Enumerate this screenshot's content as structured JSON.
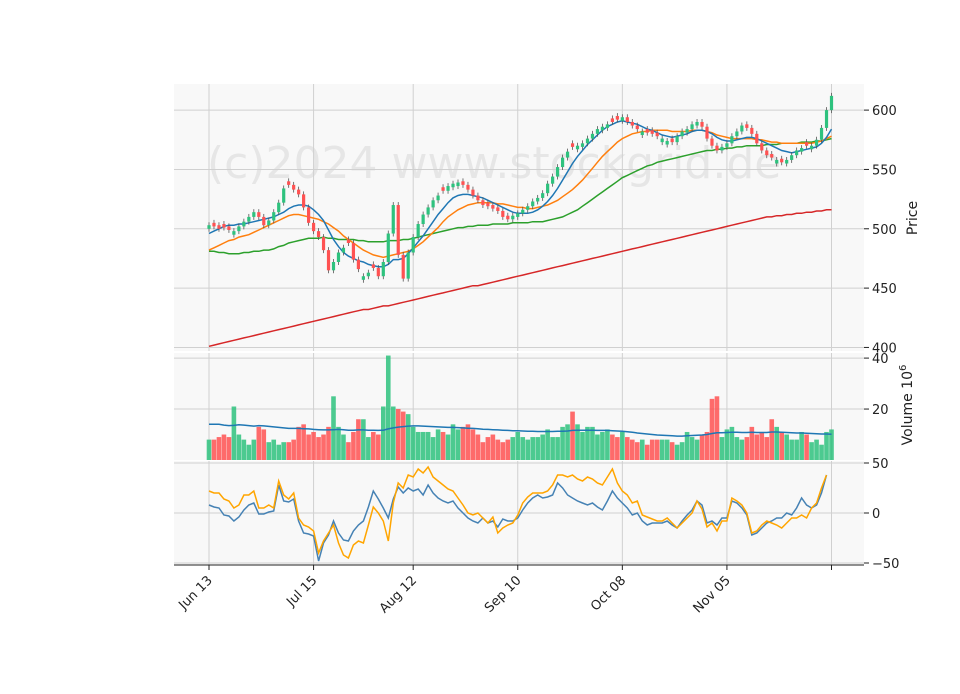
{
  "chart_data": {
    "type": "candlestick",
    "watermark": "(c)2024 www.stockgrid.de",
    "colors": {
      "up": "#2ec27e",
      "down": "#ff5252",
      "ma_fast": "#1f77b4",
      "ma_mid": "#ff7f0e",
      "ma_slow": "#2ca02c",
      "ma_long": "#d62728",
      "vol_ma": "#1f77b4",
      "osc_a": "#4682b4",
      "osc_b": "#ffa500",
      "panel_bg": "#f8f8f8",
      "grid": "#d0d0d0"
    },
    "x_ticks": [
      {
        "label": "Jun 13",
        "index": 0
      },
      {
        "label": "Jul 15",
        "index": 21
      },
      {
        "label": "Aug 12",
        "index": 41
      },
      {
        "label": "Sep 10",
        "index": 62
      },
      {
        "label": "Oct 08",
        "index": 83
      },
      {
        "label": "Nov 05",
        "index": 104
      },
      {
        "label": "",
        "index": 125
      }
    ],
    "price_panel": {
      "ylabel": "Price",
      "ylim": [
        397,
        622
      ],
      "yticks": [
        400,
        450,
        500,
        550,
        600
      ],
      "close": [
        503,
        502,
        500,
        501,
        499,
        498,
        502,
        506,
        510,
        514,
        510,
        503,
        507,
        514,
        522,
        534,
        537,
        533,
        529,
        518,
        505,
        498,
        493,
        482,
        465,
        472,
        480,
        484,
        488,
        474,
        466,
        460,
        463,
        467,
        460,
        472,
        496,
        520,
        478,
        458,
        480,
        493,
        504,
        512,
        518,
        524,
        528,
        532,
        536,
        538,
        539,
        537,
        533,
        528,
        524,
        520,
        519,
        517,
        515,
        510,
        508,
        511,
        513,
        516,
        519,
        523,
        526,
        530,
        538,
        544,
        552,
        560,
        565,
        569,
        570,
        572,
        576,
        580,
        584,
        586,
        588,
        590,
        592,
        594,
        590,
        587,
        584,
        582,
        581,
        580,
        578,
        576,
        574,
        573,
        578,
        582,
        584,
        588,
        590,
        586,
        576,
        570,
        566,
        569,
        572,
        578,
        582,
        587,
        585,
        580,
        572,
        566,
        562,
        560,
        558,
        556,
        558,
        562,
        566,
        568,
        570,
        570,
        575,
        585,
        600,
        612
      ],
      "candle_color": [
        1,
        0,
        0,
        0,
        0,
        1,
        1,
        1,
        1,
        1,
        0,
        0,
        1,
        1,
        1,
        1,
        0,
        0,
        0,
        0,
        0,
        0,
        0,
        0,
        0,
        1,
        1,
        1,
        0,
        0,
        0,
        1,
        1,
        0,
        0,
        1,
        1,
        1,
        0,
        0,
        1,
        1,
        1,
        1,
        1,
        1,
        1,
        0,
        1,
        1,
        1,
        0,
        0,
        0,
        0,
        0,
        0,
        0,
        0,
        0,
        0,
        1,
        1,
        1,
        1,
        1,
        1,
        1,
        1,
        1,
        1,
        1,
        1,
        0,
        1,
        1,
        1,
        1,
        1,
        1,
        1,
        0,
        0,
        1,
        0,
        0,
        0,
        1,
        0,
        0,
        0,
        1,
        1,
        0,
        1,
        1,
        1,
        1,
        1,
        0,
        0,
        0,
        0,
        1,
        1,
        1,
        1,
        1,
        0,
        0,
        0,
        0,
        0,
        0,
        1,
        0,
        1,
        1,
        1,
        1,
        0,
        1,
        1,
        1,
        1,
        1
      ],
      "ma_fast": [
        496,
        498,
        500,
        502,
        503,
        503,
        504,
        504,
        505,
        506,
        507,
        508,
        509,
        510,
        512,
        514,
        517,
        519,
        520,
        520,
        519,
        516,
        512,
        507,
        499,
        491,
        485,
        480,
        477,
        475,
        473,
        472,
        470,
        469,
        468,
        468,
        470,
        474,
        474,
        475,
        479,
        484,
        489,
        494,
        500,
        506,
        512,
        517,
        522,
        526,
        528,
        529,
        529,
        528,
        527,
        526,
        524,
        522,
        520,
        518,
        516,
        514,
        513,
        513,
        513,
        514,
        516,
        519,
        523,
        528,
        534,
        541,
        548,
        555,
        561,
        566,
        571,
        575,
        579,
        583,
        586,
        588,
        590,
        591,
        590,
        589,
        588,
        586,
        584,
        583,
        581,
        579,
        578,
        577,
        578,
        579,
        580,
        582,
        583,
        583,
        582,
        580,
        577,
        575,
        574,
        574,
        575,
        576,
        577,
        577,
        576,
        574,
        572,
        570,
        568,
        566,
        565,
        564,
        565,
        566,
        567,
        568,
        569,
        572,
        577,
        584
      ],
      "ma_mid": [
        482,
        484,
        486,
        488,
        490,
        491,
        493,
        494,
        495,
        497,
        499,
        501,
        503,
        505,
        507,
        509,
        511,
        512,
        512,
        511,
        510,
        509,
        508,
        506,
        504,
        501,
        498,
        494,
        491,
        488,
        485,
        482,
        480,
        478,
        477,
        476,
        477,
        478,
        479,
        480,
        481,
        483,
        486,
        489,
        493,
        497,
        501,
        506,
        510,
        513,
        516,
        518,
        520,
        521,
        522,
        522,
        522,
        522,
        521,
        521,
        520,
        519,
        518,
        518,
        517,
        517,
        518,
        519,
        520,
        522,
        524,
        527,
        530,
        533,
        537,
        541,
        546,
        551,
        556,
        561,
        565,
        569,
        573,
        576,
        578,
        580,
        581,
        582,
        582,
        583,
        583,
        583,
        583,
        582,
        582,
        582,
        582,
        583,
        583,
        583,
        582,
        581,
        579,
        578,
        577,
        576,
        576,
        576,
        576,
        576,
        575,
        575,
        574,
        573,
        573,
        572,
        572,
        572,
        572,
        572,
        572,
        572,
        573,
        574,
        576,
        578
      ],
      "ma_slow": [
        481,
        481,
        480,
        480,
        479,
        479,
        479,
        480,
        480,
        481,
        481,
        482,
        482,
        483,
        485,
        486,
        488,
        489,
        490,
        491,
        492,
        492,
        492,
        493,
        492,
        492,
        491,
        491,
        491,
        491,
        490,
        490,
        489,
        489,
        489,
        489,
        490,
        490,
        490,
        491,
        491,
        492,
        493,
        494,
        495,
        496,
        497,
        498,
        499,
        500,
        501,
        501,
        502,
        502,
        503,
        503,
        503,
        504,
        504,
        504,
        504,
        505,
        505,
        505,
        505,
        506,
        506,
        506,
        507,
        508,
        509,
        510,
        512,
        514,
        516,
        519,
        522,
        525,
        528,
        531,
        534,
        537,
        540,
        543,
        545,
        547,
        549,
        551,
        553,
        554,
        556,
        557,
        558,
        559,
        560,
        561,
        562,
        563,
        564,
        565,
        566,
        566,
        567,
        567,
        568,
        568,
        569,
        569,
        570,
        570,
        570,
        570,
        571,
        571,
        571,
        572,
        572,
        572,
        572,
        573,
        573,
        573,
        574,
        574,
        575,
        576
      ],
      "ma_long": [
        401,
        402,
        403,
        404,
        405,
        406,
        407,
        408,
        409,
        410,
        411,
        412,
        413,
        414,
        415,
        416,
        417,
        418,
        419,
        420,
        421,
        422,
        423,
        424,
        425,
        426,
        427,
        428,
        429,
        430,
        431,
        432,
        432,
        433,
        434,
        435,
        435,
        436,
        437,
        438,
        439,
        440,
        441,
        442,
        443,
        444,
        445,
        446,
        447,
        448,
        449,
        450,
        451,
        452,
        452,
        453,
        454,
        455,
        456,
        457,
        458,
        459,
        460,
        461,
        462,
        463,
        464,
        465,
        466,
        467,
        468,
        469,
        470,
        471,
        472,
        473,
        474,
        475,
        476,
        477,
        478,
        479,
        480,
        481,
        482,
        483,
        484,
        485,
        486,
        487,
        488,
        489,
        490,
        491,
        492,
        493,
        494,
        495,
        496,
        497,
        498,
        499,
        500,
        501,
        502,
        503,
        504,
        505,
        506,
        507,
        508,
        509,
        510,
        510,
        511,
        511,
        512,
        512,
        513,
        513,
        514,
        514,
        515,
        515,
        516,
        516
      ]
    },
    "volume_panel": {
      "ylabel": "Volume 10",
      "ylabel_exp": "6",
      "ylim": [
        0,
        42
      ],
      "yticks": [
        20,
        40
      ],
      "volume": [
        8,
        8,
        9,
        10,
        9,
        21,
        10,
        8,
        6,
        8,
        13,
        12,
        7,
        8,
        6,
        7,
        7,
        8,
        13,
        14,
        10,
        11,
        9,
        10,
        13,
        25,
        13,
        10,
        7,
        11,
        16,
        16,
        9,
        11,
        10,
        21,
        41,
        21,
        20,
        19,
        18,
        13,
        11,
        11,
        11,
        9,
        12,
        11,
        10,
        14,
        12,
        13,
        14,
        12,
        10,
        7,
        9,
        10,
        8,
        7,
        8,
        9,
        11,
        9,
        8,
        9,
        9,
        10,
        12,
        9,
        9,
        13,
        14,
        19,
        14,
        11,
        13,
        13,
        10,
        11,
        12,
        10,
        9,
        11,
        9,
        8,
        7,
        8,
        6,
        8,
        8,
        8,
        8,
        7,
        6,
        7,
        11,
        9,
        8,
        10,
        11,
        24,
        25,
        9,
        12,
        13,
        9,
        8,
        9,
        13,
        10,
        11,
        9,
        16,
        13,
        11,
        10,
        8,
        8,
        11,
        10,
        7,
        8,
        6,
        11,
        12
      ],
      "vol_ma": [
        14,
        14,
        14,
        13.7,
        13.5,
        13.6,
        13.8,
        13.7,
        13.5,
        13.3,
        13.5,
        13.4,
        13.2,
        13,
        12.8,
        12.6,
        12.4,
        12.4,
        12.4,
        12.3,
        12.2,
        12,
        11.9,
        11.8,
        11.8,
        11.9,
        12,
        11.9,
        11.7,
        11.7,
        11.8,
        11.8,
        11.7,
        11.7,
        11.6,
        11.7,
        12.2,
        12.6,
        12.9,
        13.1,
        13.3,
        13.4,
        13.4,
        13.3,
        13.2,
        13.1,
        13,
        12.9,
        12.8,
        12.8,
        12.7,
        12.6,
        12.5,
        12.4,
        12.3,
        12.1,
        12,
        11.9,
        11.8,
        11.7,
        11.6,
        11.5,
        11.5,
        11.4,
        11.3,
        11.3,
        11.2,
        11.2,
        11.2,
        11.2,
        11.3,
        11.3,
        11.4,
        11.6,
        11.7,
        11.7,
        11.7,
        11.7,
        11.6,
        11.6,
        11.6,
        11.5,
        11.4,
        11.3,
        11.1,
        10.9,
        10.6,
        10.4,
        10.2,
        10,
        9.8,
        9.7,
        9.6,
        9.5,
        9.4,
        9.4,
        9.5,
        9.6,
        9.7,
        9.8,
        10,
        10.4,
        10.7,
        10.7,
        10.8,
        10.9,
        10.9,
        10.8,
        10.8,
        10.9,
        10.8,
        10.8,
        10.8,
        11,
        11,
        10.9,
        10.8,
        10.7,
        10.6,
        10.6,
        10.5,
        10.4,
        10.3,
        10.2,
        10.2,
        10.1
      ]
    },
    "oscillator_panel": {
      "ylim": [
        -52,
        52
      ],
      "yticks": [
        -50,
        0,
        50
      ],
      "series_a": [
        8,
        6,
        5,
        -2,
        -3,
        -8,
        -4,
        3,
        8,
        10,
        -1,
        -1,
        1,
        2,
        28,
        12,
        11,
        14,
        -8,
        -20,
        -21,
        -23,
        -48,
        -30,
        -22,
        -8,
        -20,
        -27,
        -28,
        -18,
        -12,
        -8,
        6,
        22,
        14,
        5,
        -5,
        14,
        26,
        20,
        25,
        22,
        24,
        18,
        28,
        20,
        15,
        12,
        10,
        12,
        5,
        0,
        -5,
        -8,
        -10,
        -5,
        -10,
        -8,
        -14,
        -6,
        -8,
        -8,
        -5,
        3,
        10,
        15,
        18,
        15,
        16,
        18,
        30,
        25,
        18,
        15,
        12,
        10,
        8,
        10,
        6,
        3,
        12,
        22,
        15,
        10,
        5,
        -2,
        0,
        -8,
        -12,
        -10,
        -10,
        -10,
        -8,
        -12,
        -15,
        -8,
        -2,
        3,
        12,
        8,
        -10,
        -8,
        -12,
        -5,
        -5,
        12,
        10,
        5,
        -2,
        -22,
        -20,
        -15,
        -10,
        -8,
        -5,
        -5,
        0,
        -2,
        5,
        15,
        8,
        5,
        8,
        20,
        38
      ],
      "series_b": [
        22,
        20,
        20,
        14,
        12,
        5,
        8,
        18,
        18,
        22,
        5,
        5,
        8,
        5,
        32,
        18,
        14,
        20,
        -5,
        -12,
        -14,
        -18,
        -40,
        -28,
        -20,
        -12,
        -30,
        -42,
        -45,
        -32,
        -28,
        -30,
        -12,
        6,
        0,
        -8,
        -28,
        10,
        30,
        25,
        38,
        36,
        44,
        40,
        46,
        36,
        32,
        28,
        24,
        22,
        15,
        8,
        0,
        -2,
        0,
        -5,
        -10,
        -4,
        -20,
        -15,
        -12,
        -10,
        -2,
        10,
        16,
        20,
        20,
        20,
        22,
        28,
        38,
        38,
        36,
        38,
        34,
        32,
        36,
        34,
        30,
        28,
        36,
        44,
        30,
        22,
        18,
        10,
        12,
        -2,
        -4,
        -6,
        -8,
        -8,
        -5,
        -10,
        -15,
        -10,
        -5,
        0,
        12,
        4,
        -14,
        -10,
        -18,
        -8,
        -8,
        15,
        12,
        8,
        0,
        -20,
        -18,
        -12,
        -8,
        -10,
        -12,
        -15,
        -10,
        -5,
        -5,
        -2,
        -5,
        5,
        10,
        25,
        38
      ]
    }
  }
}
